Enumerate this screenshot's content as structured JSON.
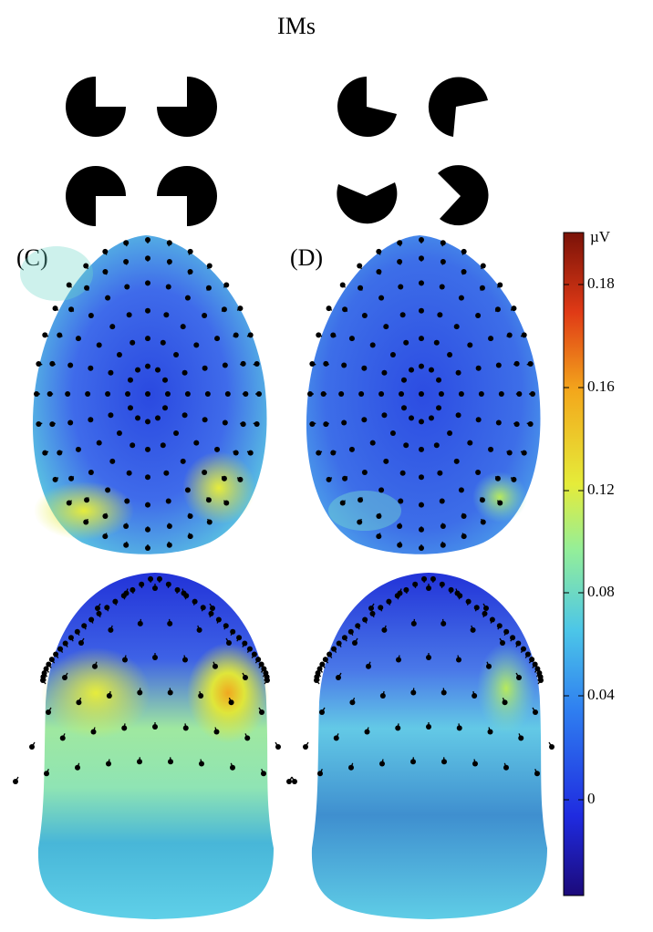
{
  "figure": {
    "title": "IMs",
    "panels": [
      {
        "label": "(C)"
      },
      {
        "label": "(D)"
      }
    ],
    "stimuli": [
      {
        "name": "illusory-square",
        "inducers": 4
      },
      {
        "name": "non-illusory-rotated",
        "inducers": 4
      }
    ]
  },
  "colorbar": {
    "unit": "µV",
    "ticks": [
      "0.18",
      "0.16",
      "0.12",
      "0.08",
      "0.04",
      "0"
    ],
    "colors": [
      "#1c0a7a",
      "#1f2be0",
      "#2f7ff0",
      "#4cc6e8",
      "#93ee9a",
      "#e5ec3a",
      "#f3a81c",
      "#e03a16",
      "#7a1208"
    ]
  },
  "maps": {
    "scalp_color_base": "#3f6bea",
    "electrode_color": "#000000"
  }
}
